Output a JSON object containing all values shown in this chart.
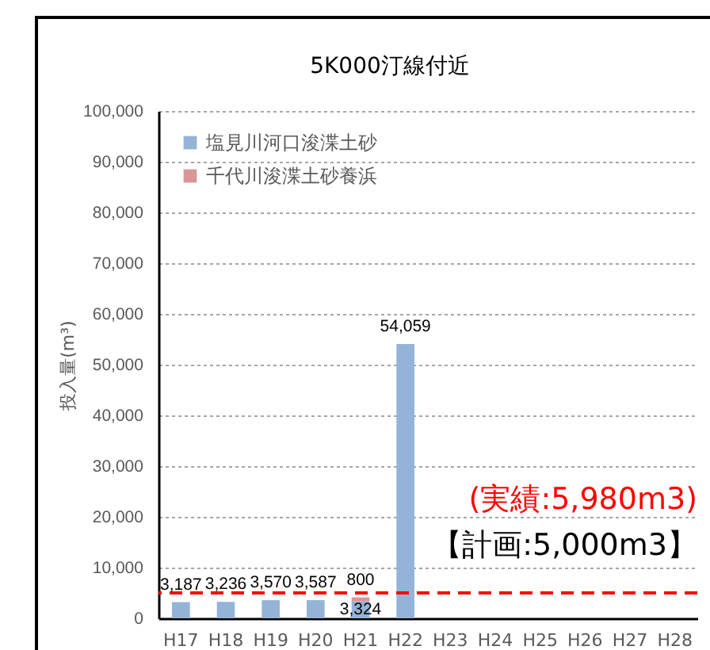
{
  "chart_data": {
    "type": "bar",
    "title": "5K000汀線付近",
    "ylabel": "投入量(m³)",
    "categories": [
      "H17",
      "H18",
      "H19",
      "H20",
      "H21",
      "H22",
      "H23",
      "H24",
      "H25",
      "H26",
      "H27",
      "H28"
    ],
    "series": [
      {
        "name": "塩見川河口浚渫土砂",
        "color": "#95b3d7",
        "values": [
          3187,
          3236,
          3570,
          3587,
          3324,
          54059,
          null,
          null,
          null,
          null,
          null,
          null
        ],
        "value_labels": [
          "3,187",
          "3,236",
          "3,570",
          "3,587",
          "3,324",
          "54,059",
          null,
          null,
          null,
          null,
          null,
          null
        ]
      },
      {
        "name": "千代川浚渫土砂養浜",
        "color": "#da9694",
        "values": [
          null,
          null,
          null,
          null,
          800,
          null,
          null,
          null,
          null,
          null,
          null,
          null
        ],
        "value_labels": [
          null,
          null,
          null,
          null,
          "800",
          null,
          null,
          null,
          null,
          null,
          null,
          null
        ]
      }
    ],
    "stacked": true,
    "ylim": [
      0,
      100000
    ],
    "yticks": [
      0,
      {
        "value": 10000,
        "label": "10,000"
      },
      {
        "value": 20000,
        "label": "20,000"
      },
      {
        "value": 30000,
        "label": "30,000"
      },
      {
        "value": 40000,
        "label": "40,000"
      },
      {
        "value": 50000,
        "label": "50,000"
      },
      {
        "value": 60000,
        "label": "60,000"
      },
      {
        "value": 70000,
        "label": "70,000"
      },
      {
        "value": 80000,
        "label": "80,000"
      },
      {
        "value": 90000,
        "label": "90,000"
      },
      {
        "value": 100000,
        "label": "100,000"
      }
    ],
    "grid": "y",
    "legend": "top left",
    "ref_lines": [
      {
        "axis": "y",
        "value": 5000,
        "color": "#ff0000",
        "line_style": "dashed"
      }
    ],
    "annotations": [
      "(実績:5,980m3)",
      "【計画:5,000m3】"
    ]
  }
}
